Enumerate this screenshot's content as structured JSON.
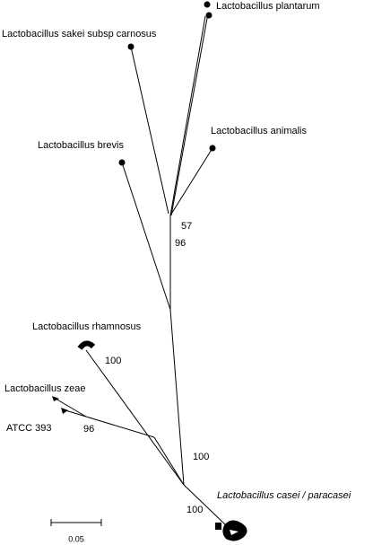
{
  "taxa": [
    "Lactobacillus plantarum",
    "Lactobacillus sakei subsp carnosus",
    "Lactobacillus animalis",
    "Lactobacillus brevis",
    "Lactobacillus rhamnosus",
    "Lactobacillus zeae",
    "ATCC 393",
    "Lactobacillus casei / paracasei"
  ],
  "bootstrap": [
    57,
    96,
    100,
    96,
    100,
    100
  ],
  "scale_bar": {
    "label": "0.05"
  }
}
